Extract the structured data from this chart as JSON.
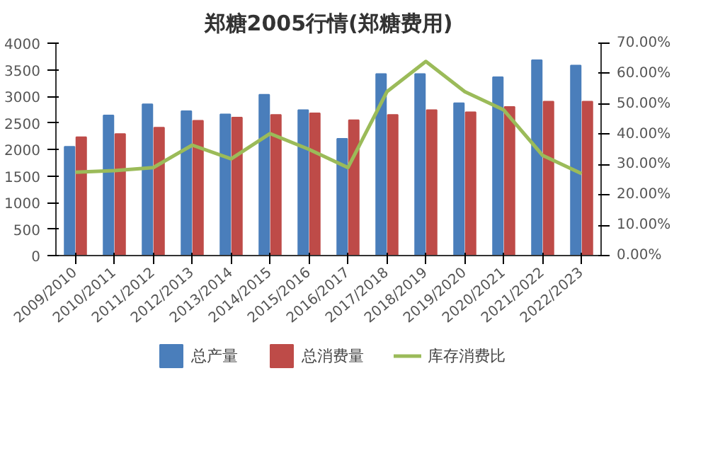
{
  "chart_data": {
    "type": "bar",
    "title": "郑糖2005行情(郑糖费用)",
    "categories": [
      "2009/2010",
      "2010/2011",
      "2011/2012",
      "2012/2013",
      "2013/2014",
      "2014/2015",
      "2015/2016",
      "2016/2017",
      "2017/2018",
      "2018/2019",
      "2019/2020",
      "2020/2021",
      "2021/2022",
      "2022/2023"
    ],
    "series": [
      {
        "name": "总产量",
        "color": "#4a7ebb",
        "values": [
          2050,
          2640,
          2850,
          2720,
          2660,
          3030,
          2740,
          2200,
          3420,
          3420,
          2870,
          3360,
          3680,
          3580
        ]
      },
      {
        "name": "总消费量",
        "color": "#be4b48",
        "values": [
          2230,
          2290,
          2410,
          2540,
          2600,
          2650,
          2680,
          2550,
          2650,
          2740,
          2700,
          2800,
          2900,
          2900
        ]
      },
      {
        "name": "库存消费比",
        "type": "line",
        "axis": "y2",
        "color": "#9bbb59",
        "values": [
          27.5,
          28,
          29,
          36.4,
          31.9,
          40.2,
          35,
          29,
          54,
          64,
          54,
          48,
          33,
          27
        ]
      }
    ],
    "ylim": [
      0,
      4000
    ],
    "yticks": [
      0,
      500,
      1000,
      1500,
      2000,
      2500,
      3000,
      3500,
      4000
    ],
    "y2lim": [
      0,
      70
    ],
    "y2ticks": [
      {
        "value": 0,
        "label": "0.00%"
      },
      {
        "value": 10,
        "label": "10.00%"
      },
      {
        "value": 20,
        "label": "20.00%"
      },
      {
        "value": 30,
        "label": "30.00%"
      },
      {
        "value": 40,
        "label": "40.00%"
      },
      {
        "value": 50,
        "label": "50.00%"
      },
      {
        "value": 60,
        "label": "60.00%"
      },
      {
        "value": 70,
        "label": "70.00%"
      }
    ],
    "legend": "bottom"
  }
}
